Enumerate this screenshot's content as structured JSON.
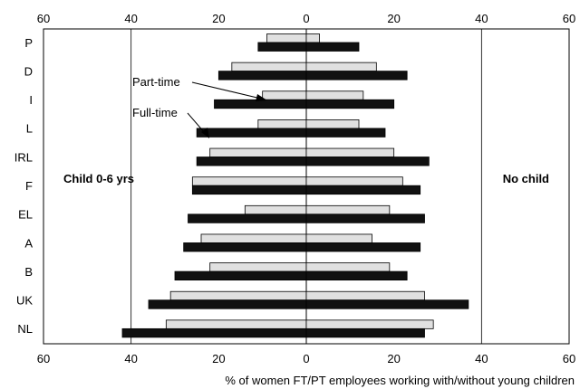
{
  "chart_data": {
    "type": "bar",
    "orientation": "horizontal",
    "layout": "butterfly",
    "categories": [
      "P",
      "D",
      "I",
      "L",
      "IRL",
      "F",
      "EL",
      "A",
      "B",
      "UK",
      "NL"
    ],
    "sides": [
      {
        "label": "Child 0-6 yrs",
        "direction": "left",
        "series": [
          {
            "name": "Part-time",
            "values": [
              9,
              17,
              10,
              11,
              22,
              26,
              14,
              24,
              22,
              31,
              32
            ]
          },
          {
            "name": "Full-time",
            "values": [
              11,
              20,
              21,
              25,
              25,
              26,
              27,
              28,
              30,
              36,
              42
            ]
          }
        ]
      },
      {
        "label": "No child",
        "direction": "right",
        "series": [
          {
            "name": "Part-time",
            "values": [
              3,
              16,
              13,
              12,
              20,
              22,
              19,
              15,
              19,
              27,
              29
            ]
          },
          {
            "name": "Full-time",
            "values": [
              12,
              23,
              20,
              18,
              28,
              26,
              27,
              26,
              23,
              37,
              27
            ]
          }
        ]
      }
    ],
    "x_ticks": [
      "60",
      "40",
      "20",
      "0",
      "20",
      "40",
      "60"
    ],
    "xlim": [
      -60,
      60
    ],
    "xlabel": "% of women FT/PT employees working with/without young children",
    "annotations": [
      "Part-time",
      "Full-time"
    ],
    "grid": "vertical at 40",
    "colors": {
      "part_time": "#e0e0e0",
      "full_time": "#111111",
      "outline": "#000000"
    }
  }
}
